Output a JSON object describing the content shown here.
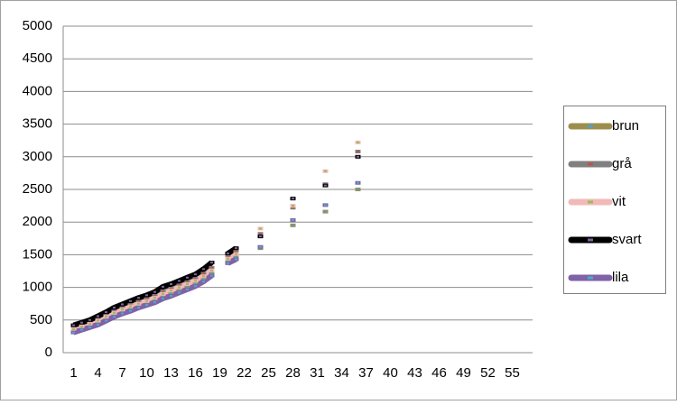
{
  "chart_data": {
    "type": "line",
    "categories": [
      1,
      null,
      null,
      4,
      null,
      null,
      7,
      null,
      null,
      10,
      null,
      null,
      13,
      null,
      null,
      16,
      null,
      null,
      19,
      null,
      null,
      22,
      null,
      null,
      25,
      null,
      null,
      28,
      null,
      null,
      31,
      null,
      null,
      34,
      null,
      null,
      37,
      null,
      null,
      40,
      null,
      null,
      43,
      null,
      null,
      46,
      null,
      null,
      49,
      null,
      null,
      52,
      null,
      null,
      55,
      null,
      null
    ],
    "ylim": [
      0,
      5000
    ],
    "yticks": [
      0,
      500,
      1000,
      1500,
      2000,
      2500,
      3000,
      3500,
      4000,
      4500,
      5000
    ],
    "grid": true,
    "legend": "right",
    "series": [
      {
        "name": "brun",
        "color": "#9c8f4e",
        "marker_color": "#4f9fd0",
        "values": [
          330,
          370,
          410,
          450,
          510,
          570,
          620,
          670,
          710,
          750,
          800,
          860,
          900,
          950,
          1000,
          1050,
          1120,
          1210,
          null,
          1390,
          1460,
          null,
          null,
          1600,
          null,
          null,
          null,
          1950,
          null,
          null,
          null,
          2160,
          null,
          null,
          null,
          2500,
          null,
          null,
          null,
          null,
          null,
          null,
          null,
          null,
          null,
          null,
          null,
          null,
          null,
          null,
          null,
          null,
          null,
          null,
          null,
          null,
          null
        ]
      },
      {
        "name": "grå",
        "color": "#808080",
        "marker_color": "#c0504d",
        "values": [
          380,
          420,
          460,
          510,
          570,
          630,
          680,
          730,
          780,
          820,
          870,
          940,
          980,
          1030,
          1080,
          1130,
          1210,
          1300,
          null,
          1470,
          1550,
          null,
          null,
          1820,
          null,
          null,
          null,
          2220,
          null,
          null,
          null,
          2580,
          null,
          null,
          null,
          3080,
          null,
          null,
          null,
          null,
          null,
          null,
          null,
          null,
          null,
          null,
          null,
          null,
          null,
          null,
          null,
          null,
          null,
          null,
          null,
          null,
          null
        ]
      },
      {
        "name": "vit",
        "color": "#f2b9b9",
        "marker_color": "#9bbb59",
        "values": [
          360,
          400,
          440,
          490,
          550,
          610,
          660,
          710,
          750,
          790,
          840,
          900,
          950,
          1000,
          1050,
          1100,
          1170,
          1260,
          null,
          1440,
          1510,
          null,
          null,
          1900,
          null,
          null,
          null,
          2250,
          null,
          null,
          null,
          2780,
          null,
          null,
          null,
          3220,
          null,
          null,
          null,
          null,
          null,
          null,
          null,
          null,
          null,
          null,
          null,
          null,
          null,
          null,
          null,
          null,
          null,
          null,
          null,
          null,
          null
        ]
      },
      {
        "name": "svart",
        "color": "#000000",
        "marker_color": "#8064a2",
        "values": [
          420,
          460,
          500,
          560,
          620,
          690,
          740,
          790,
          840,
          880,
          930,
          1010,
          1050,
          1100,
          1150,
          1200,
          1280,
          1380,
          null,
          1520,
          1600,
          null,
          null,
          1780,
          null,
          null,
          null,
          2360,
          null,
          null,
          null,
          2560,
          null,
          null,
          null,
          3000,
          null,
          null,
          null,
          null,
          null,
          null,
          null,
          null,
          null,
          null,
          null,
          null,
          null,
          null,
          null,
          null,
          null,
          null,
          null,
          null,
          null
        ]
      },
      {
        "name": "lila",
        "color": "#7f62a8",
        "marker_color": "#4bacc6",
        "values": [
          310,
          350,
          390,
          430,
          490,
          550,
          600,
          640,
          690,
          730,
          770,
          830,
          870,
          920,
          970,
          1020,
          1090,
          1180,
          null,
          1370,
          1430,
          null,
          null,
          1620,
          null,
          null,
          null,
          2030,
          null,
          null,
          null,
          2260,
          null,
          null,
          null,
          2600,
          null,
          null,
          null,
          null,
          null,
          null,
          null,
          null,
          null,
          null,
          null,
          null,
          null,
          null,
          null,
          null,
          null,
          null,
          null,
          null,
          null
        ]
      }
    ]
  }
}
